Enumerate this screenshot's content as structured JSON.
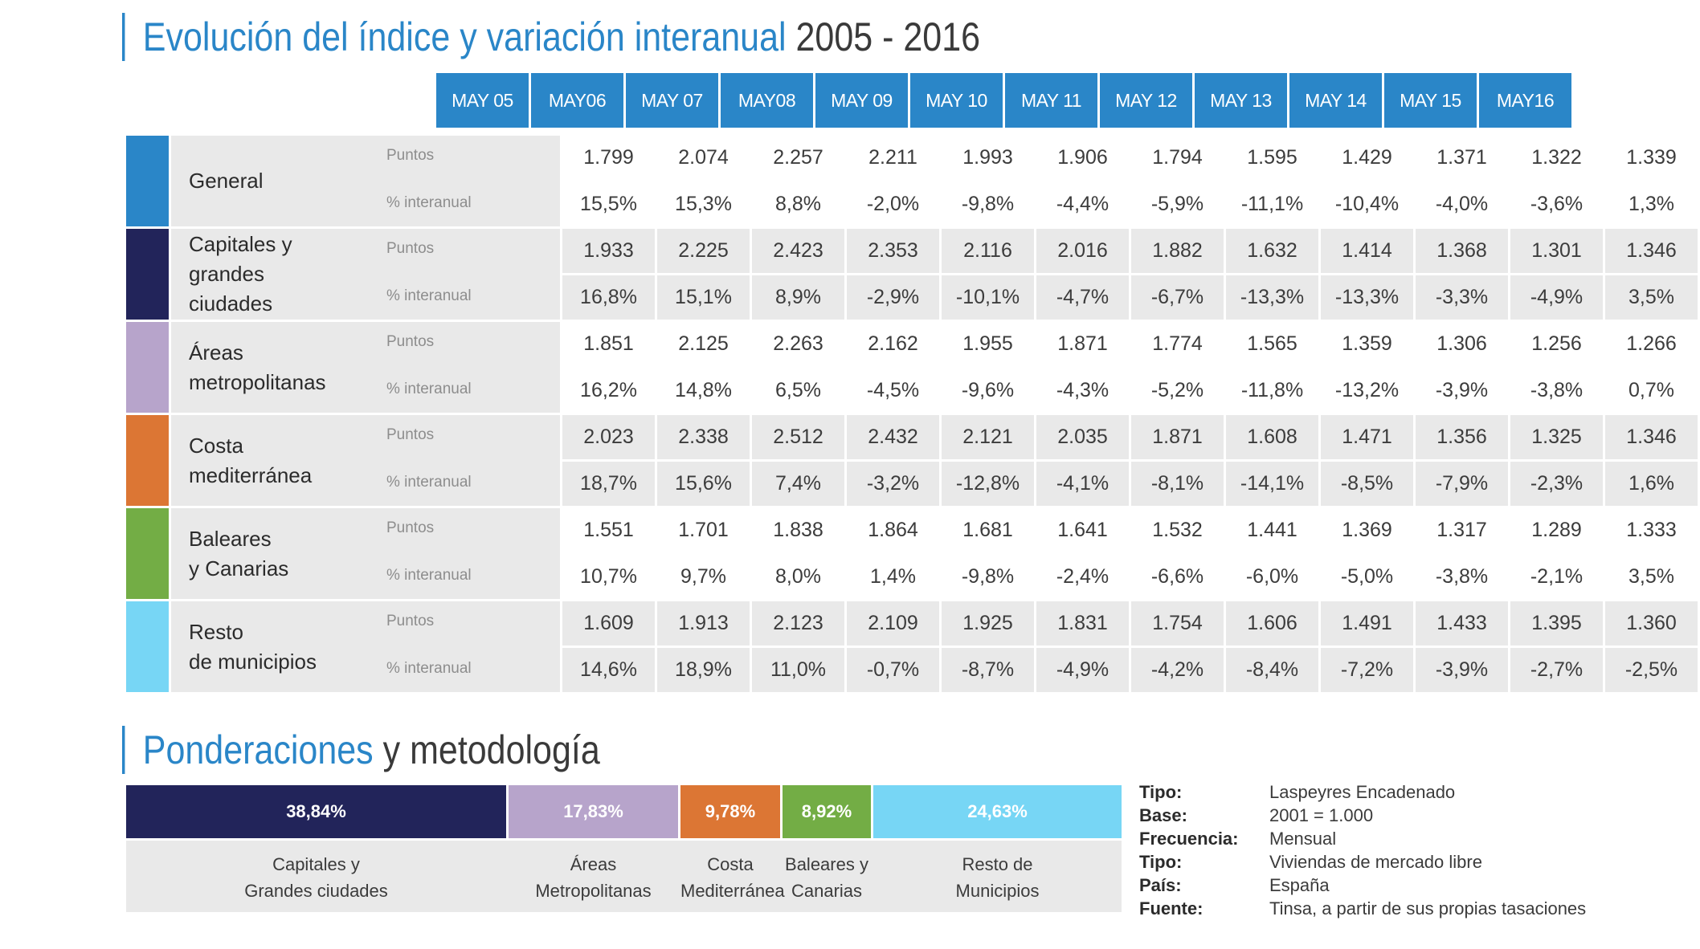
{
  "title": {
    "blue": "Evolución del índice y variación interanual",
    "dark": "2005 - 2016"
  },
  "months": [
    "MAY 05",
    "MAY06",
    "MAY 07",
    "MAY08",
    "MAY 09",
    "MAY 10",
    "MAY 11",
    "MAY 12",
    "MAY 13",
    "MAY 14",
    "MAY 15",
    "MAY16"
  ],
  "row_labels": {
    "puntos": "Puntos",
    "interanual": "% interanual"
  },
  "groups": [
    {
      "name": "General",
      "color": "#2a86c8",
      "puntos": [
        "1.799",
        "2.074",
        "2.257",
        "2.211",
        "1.993",
        "1.906",
        "1.794",
        "1.595",
        "1.429",
        "1.371",
        "1.322",
        "1.339"
      ],
      "interanual": [
        "15,5%",
        "15,3%",
        "8,8%",
        "-2,0%",
        "-9,8%",
        "-4,4%",
        "-5,9%",
        "-11,1%",
        "-10,4%",
        "-4,0%",
        "-3,6%",
        "1,3%"
      ]
    },
    {
      "name": "Capitales y\ngrandes ciudades",
      "color": "#22245a",
      "puntos": [
        "1.933",
        "2.225",
        "2.423",
        "2.353",
        "2.116",
        "2.016",
        "1.882",
        "1.632",
        "1.414",
        "1.368",
        "1.301",
        "1.346"
      ],
      "interanual": [
        "16,8%",
        "15,1%",
        "8,9%",
        "-2,9%",
        "-10,1%",
        "-4,7%",
        "-6,7%",
        "-13,3%",
        "-13,3%",
        "-3,3%",
        "-4,9%",
        "3,5%"
      ]
    },
    {
      "name": "Áreas\nmetropolitanas",
      "color": "#b7a4cb",
      "puntos": [
        "1.851",
        "2.125",
        "2.263",
        "2.162",
        "1.955",
        "1.871",
        "1.774",
        "1.565",
        "1.359",
        "1.306",
        "1.256",
        "1.266"
      ],
      "interanual": [
        "16,2%",
        "14,8%",
        "6,5%",
        "-4,5%",
        "-9,6%",
        "-4,3%",
        "-5,2%",
        "-11,8%",
        "-13,2%",
        "-3,9%",
        "-3,8%",
        "0,7%"
      ]
    },
    {
      "name": "Costa\nmediterránea",
      "color": "#dc7634",
      "puntos": [
        "2.023",
        "2.338",
        "2.512",
        "2.432",
        "2.121",
        "2.035",
        "1.871",
        "1.608",
        "1.471",
        "1.356",
        "1.325",
        "1.346"
      ],
      "interanual": [
        "18,7%",
        "15,6%",
        "7,4%",
        "-3,2%",
        "-12,8%",
        "-4,1%",
        "-8,1%",
        "-14,1%",
        "-8,5%",
        "-7,9%",
        "-2,3%",
        "1,6%"
      ]
    },
    {
      "name": "Baleares\ny Canarias",
      "color": "#73ad45",
      "puntos": [
        "1.551",
        "1.701",
        "1.838",
        "1.864",
        "1.681",
        "1.641",
        "1.532",
        "1.441",
        "1.369",
        "1.317",
        "1.289",
        "1.333"
      ],
      "interanual": [
        "10,7%",
        "9,7%",
        "8,0%",
        "1,4%",
        "-9,8%",
        "-2,4%",
        "-6,6%",
        "-6,0%",
        "-5,0%",
        "-3,8%",
        "-2,1%",
        "3,5%"
      ]
    },
    {
      "name": "Resto\nde municipios",
      "color": "#77d6f5",
      "puntos": [
        "1.609",
        "1.913",
        "2.123",
        "2.109",
        "1.925",
        "1.831",
        "1.754",
        "1.606",
        "1.491",
        "1.433",
        "1.395",
        "1.360"
      ],
      "interanual": [
        "14,6%",
        "18,9%",
        "11,0%",
        "-0,7%",
        "-8,7%",
        "-4,9%",
        "-4,2%",
        "-8,4%",
        "-7,2%",
        "-3,9%",
        "-2,7%",
        "-2,5%"
      ]
    }
  ],
  "title2": {
    "blue": "Ponderaciones",
    "dark": "y metodología"
  },
  "weights": [
    {
      "pct": "38,84%",
      "label": "Capitales y\nGrandes ciudades",
      "color": "#22245a"
    },
    {
      "pct": "17,83%",
      "label": "Áreas\nMetropolitanas",
      "color": "#b7a4cb"
    },
    {
      "pct": "9,78%",
      "label": "Costa\nMediterránea",
      "color": "#dc7634"
    },
    {
      "pct": "8,92%",
      "label": "Baleares y\nCanarias",
      "color": "#73ad45"
    },
    {
      "pct": "24,63%",
      "label": "Resto de\nMunicipios",
      "color": "#77d6f5"
    }
  ],
  "methodology": [
    {
      "key": "Tipo:",
      "value": "Laspeyres Encadenado"
    },
    {
      "key": "Base:",
      "value": "2001 = 1.000"
    },
    {
      "key": "Frecuencia:",
      "value": "Mensual"
    },
    {
      "key": "Tipo:",
      "value": "Viviendas de mercado libre"
    },
    {
      "key": "País:",
      "value": "España"
    },
    {
      "key": "Fuente:",
      "value": "Tinsa, a partir de sus propias tasaciones"
    }
  ]
}
